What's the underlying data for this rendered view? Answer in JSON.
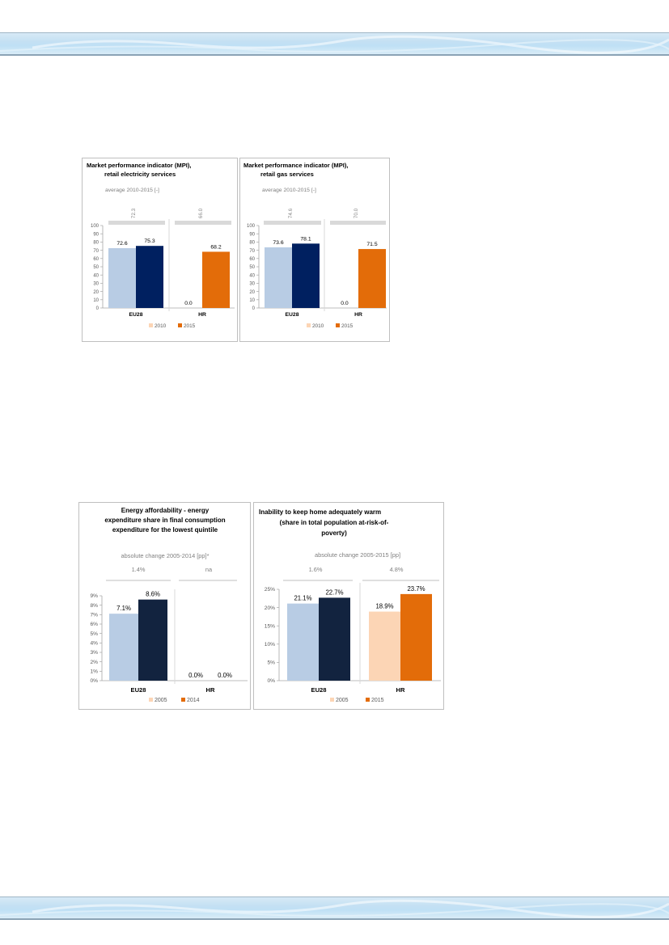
{
  "page": {
    "colors": {
      "band_light": "#d7eaf6",
      "band_border": "#8ba3b5"
    }
  },
  "chart_data": [
    {
      "type": "bar",
      "title_lines": [
        "Market performance indicator (MPI),",
        "retail electricity services"
      ],
      "subtitle": "average 2010-2015 [-]",
      "group_stats": [
        "72.3",
        "66.0"
      ],
      "categories": [
        "EU28",
        "HR"
      ],
      "series": [
        {
          "name": "2010",
          "values": [
            72.6,
            0.0
          ]
        },
        {
          "name": "2015",
          "values": [
            75.3,
            68.2
          ]
        }
      ],
      "value_labels": [
        [
          "72.6",
          "75.3"
        ],
        [
          "0.0",
          "68.2"
        ]
      ],
      "ylim": [
        0,
        100
      ],
      "yticks": [
        "0",
        "10",
        "20",
        "30",
        "40",
        "50",
        "60",
        "70",
        "80",
        "90",
        "100"
      ],
      "legend": [
        "2010",
        "2015"
      ],
      "colors": {
        "eu_a": "#b8cce4",
        "eu_b": "#002060",
        "c_a": "#fcd5b5",
        "c_b": "#e36c09"
      }
    },
    {
      "type": "bar",
      "title_lines": [
        "Market performance indicator (MPI),",
        "retail gas services"
      ],
      "subtitle": "average 2010-2015 [-]",
      "group_stats": [
        "74.6",
        "70.0"
      ],
      "categories": [
        "EU28",
        "HR"
      ],
      "series": [
        {
          "name": "2010",
          "values": [
            73.6,
            0.0
          ]
        },
        {
          "name": "2015",
          "values": [
            78.1,
            71.5
          ]
        }
      ],
      "value_labels": [
        [
          "73.6",
          "78.1"
        ],
        [
          "0.0",
          "71.5"
        ]
      ],
      "ylim": [
        0,
        100
      ],
      "yticks": [
        "0",
        "10",
        "20",
        "30",
        "40",
        "50",
        "60",
        "70",
        "80",
        "90",
        "100"
      ],
      "legend": [
        "2010",
        "2015"
      ],
      "colors": {
        "eu_a": "#b8cce4",
        "eu_b": "#002060",
        "c_a": "#fcd5b5",
        "c_b": "#e36c09"
      }
    },
    {
      "type": "bar",
      "title_lines": [
        "Energy affordability - energy",
        "expenditure share in final consumption",
        "expenditure for the lowest quintile"
      ],
      "subtitle": "absolute change 2005-2014 [pp]*",
      "group_stats": [
        "1.4%",
        "na"
      ],
      "categories": [
        "EU28",
        "HR"
      ],
      "series": [
        {
          "name": "2005",
          "values": [
            7.1,
            0.0
          ]
        },
        {
          "name": "2014",
          "values": [
            8.6,
            0.0
          ]
        }
      ],
      "value_labels": [
        [
          "7.1%",
          "8.6%"
        ],
        [
          "0.0%",
          "0.0%"
        ]
      ],
      "ylim": [
        0,
        9
      ],
      "yticks": [
        "0%",
        "1%",
        "2%",
        "3%",
        "4%",
        "5%",
        "6%",
        "7%",
        "8%",
        "9%"
      ],
      "legend": [
        "2005",
        "2014"
      ],
      "colors": {
        "eu_a": "#b8cce4",
        "eu_b": "#12233f",
        "c_a": "#fcd5b5",
        "c_b": "#e36c09"
      }
    },
    {
      "type": "bar",
      "title_lines": [
        "Inability to keep home adequately warm",
        "(share in total population at-risk-of-",
        "poverty)"
      ],
      "subtitle": "absolute change 2005-2015 [pp]",
      "group_stats": [
        "1.6%",
        "4.8%"
      ],
      "categories": [
        "EU28",
        "HR"
      ],
      "series": [
        {
          "name": "2005",
          "values": [
            21.1,
            18.9
          ]
        },
        {
          "name": "2015",
          "values": [
            22.7,
            23.7
          ]
        }
      ],
      "value_labels": [
        [
          "21.1%",
          "22.7%"
        ],
        [
          "18.9%",
          "23.7%"
        ]
      ],
      "ylim": [
        0,
        25
      ],
      "yticks": [
        "0%",
        "5%",
        "10%",
        "15%",
        "20%",
        "25%"
      ],
      "legend": [
        "2005",
        "2015"
      ],
      "colors": {
        "eu_a": "#b8cce4",
        "eu_b": "#12233f",
        "c_a": "#fcd5b5",
        "c_b": "#e36c09"
      }
    }
  ]
}
